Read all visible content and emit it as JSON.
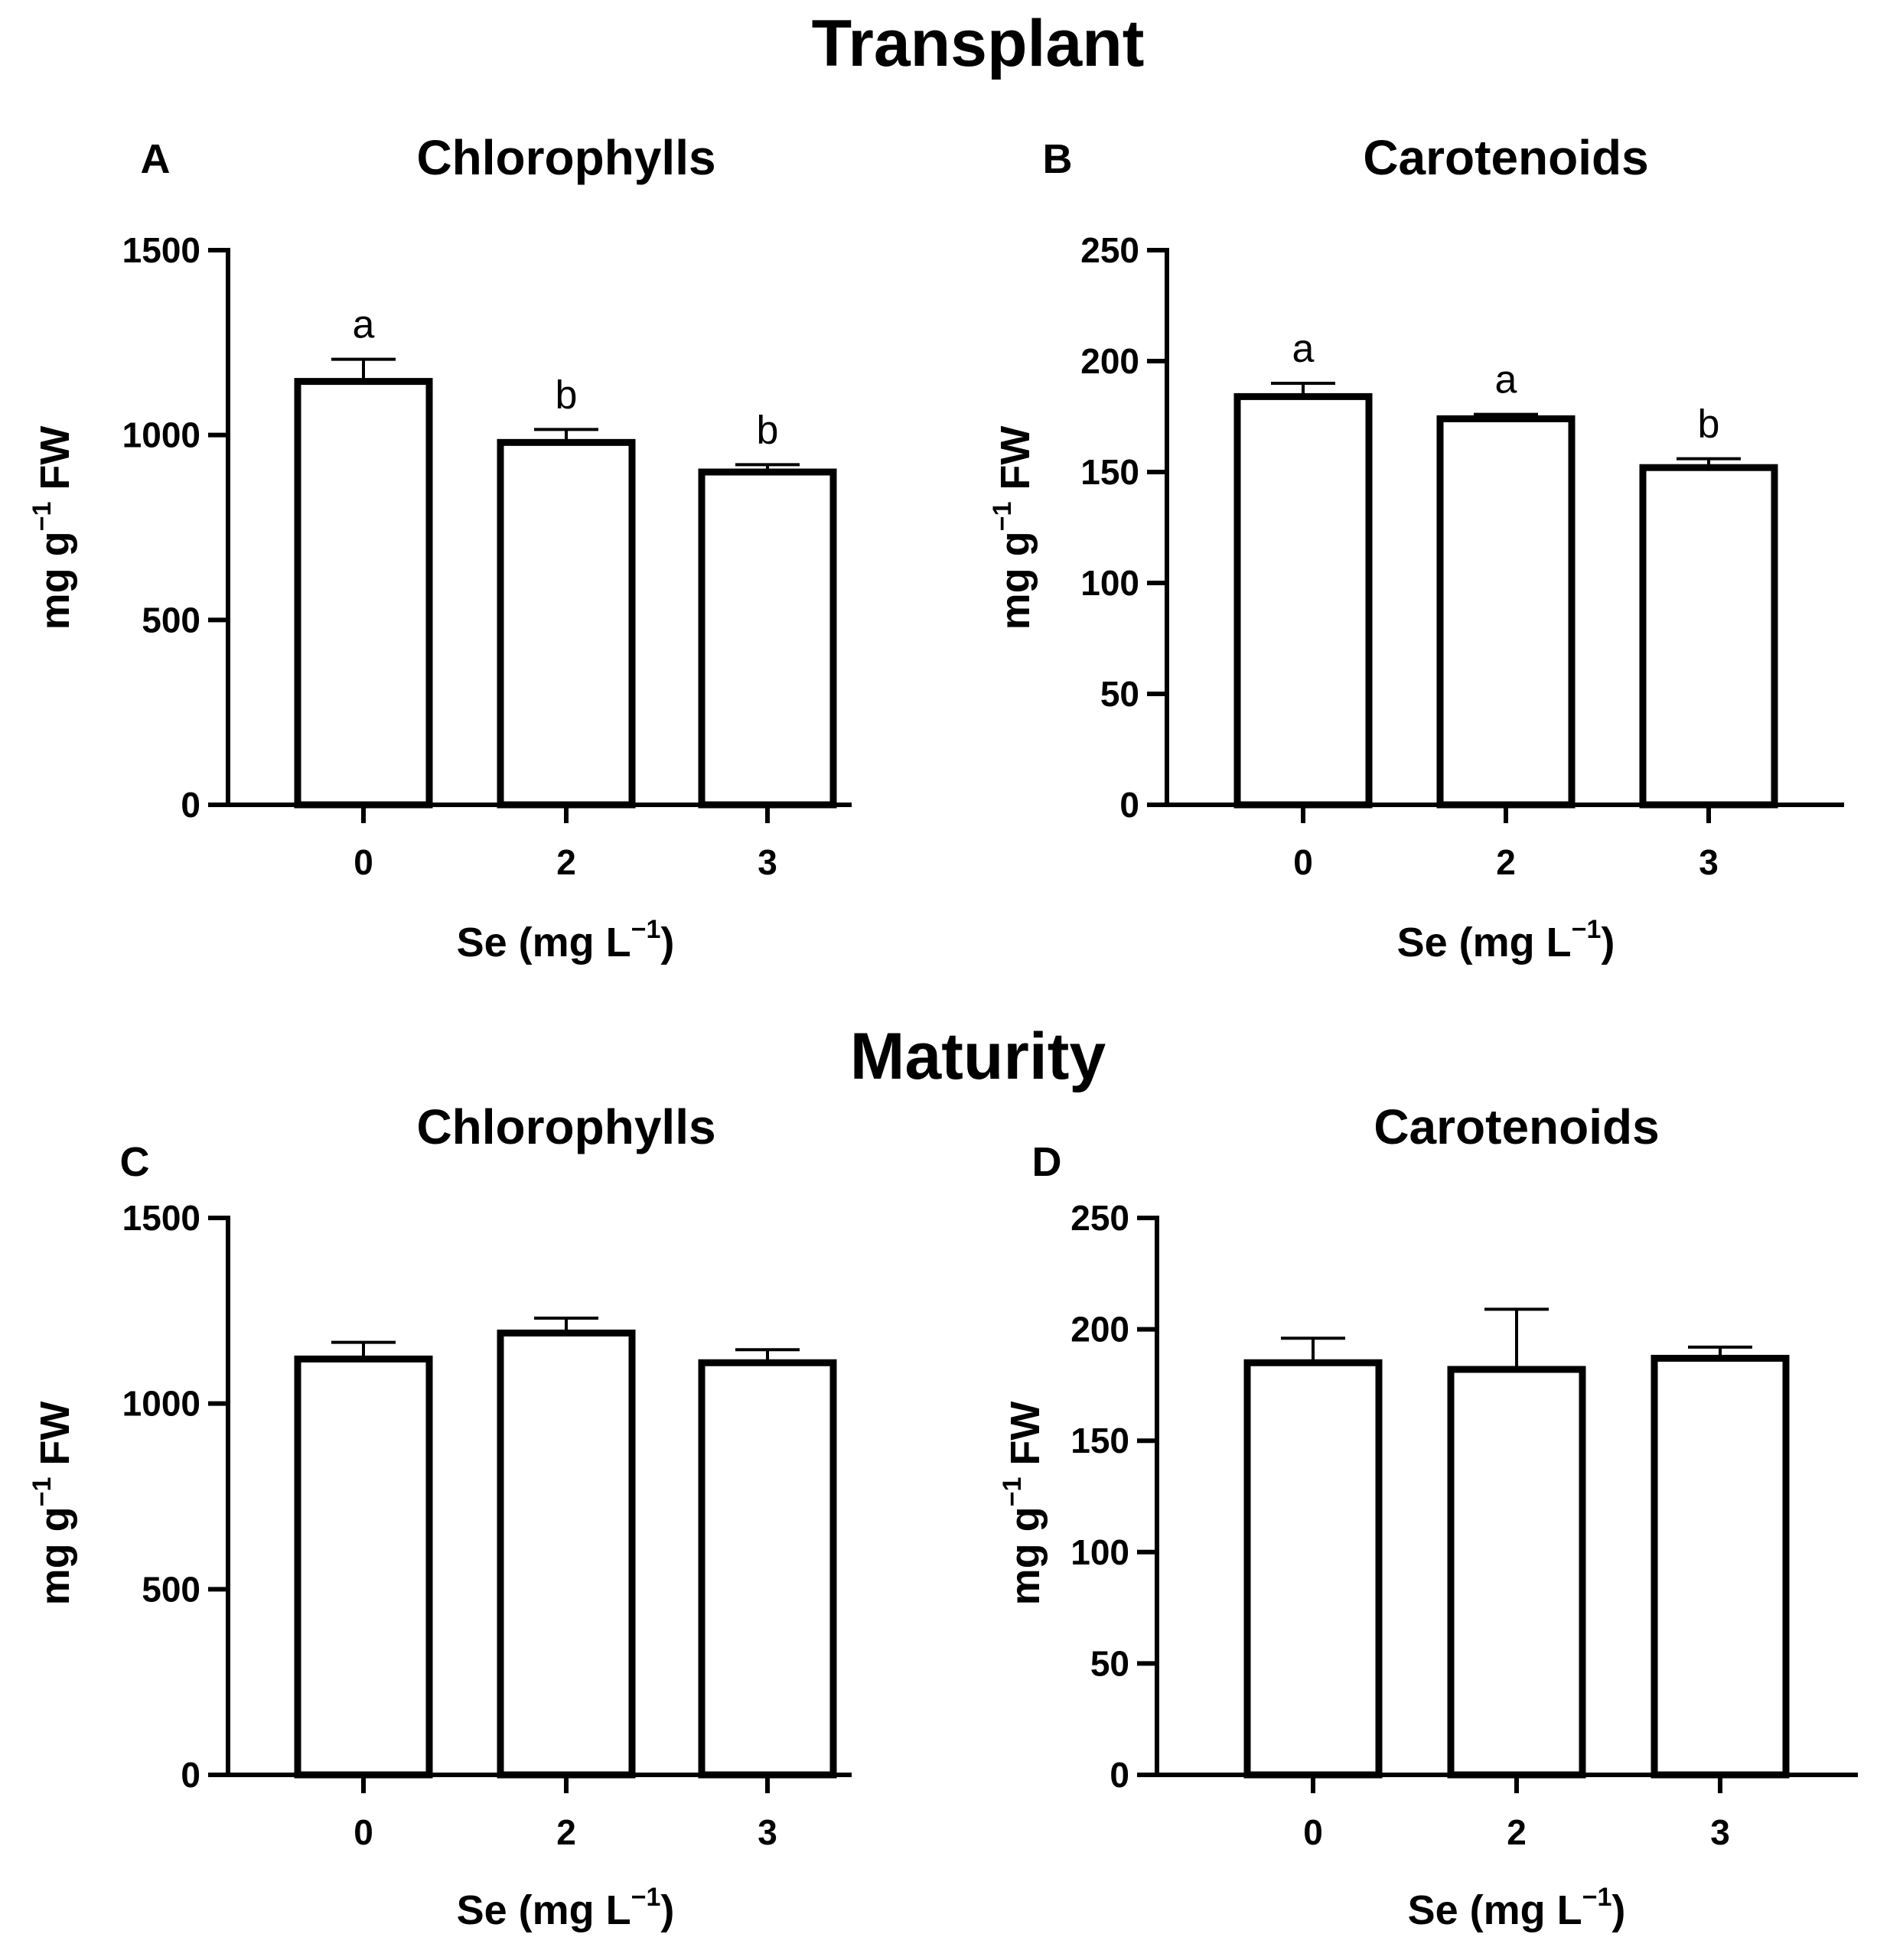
{
  "figure": {
    "sections": [
      {
        "title": "Transplant"
      },
      {
        "title": "Maturity"
      }
    ]
  },
  "chart_data": [
    {
      "panel": "A",
      "section": "Transplant",
      "type": "bar",
      "title": "Chlorophylls",
      "xlabel": "Se (mg L",
      "xlabel_sup": "−1",
      "xlabel_end": ")",
      "ylabel": "mg g",
      "ylabel_sup": "−1",
      "ylabel_end": " FW",
      "categories": [
        "0",
        "2",
        "3"
      ],
      "values": [
        1145,
        980,
        900
      ],
      "errors": [
        60,
        35,
        20
      ],
      "significance": [
        "a",
        "b",
        "b"
      ],
      "ylim": [
        0,
        1500
      ],
      "yticks": [
        0,
        500,
        1000,
        1500
      ]
    },
    {
      "panel": "B",
      "section": "Transplant",
      "type": "bar",
      "title": "Carotenoids",
      "xlabel": "Se (mg L",
      "xlabel_sup": "−1",
      "xlabel_end": ")",
      "ylabel": "mg g",
      "ylabel_sup": "−1",
      "ylabel_end": " FW",
      "categories": [
        "0",
        "2",
        "3"
      ],
      "values": [
        184,
        174,
        152
      ],
      "errors": [
        6,
        2,
        4
      ],
      "significance": [
        "a",
        "a",
        "b"
      ],
      "ylim": [
        0,
        250
      ],
      "yticks": [
        0,
        50,
        100,
        150,
        200,
        250
      ]
    },
    {
      "panel": "C",
      "section": "Maturity",
      "type": "bar",
      "title": "Chlorophylls",
      "xlabel": "Se (mg L",
      "xlabel_sup": "−1",
      "xlabel_end": ")",
      "ylabel": "mg g",
      "ylabel_sup": "−1",
      "ylabel_end": " FW",
      "categories": [
        "0",
        "2",
        "3"
      ],
      "values": [
        1120,
        1190,
        1110
      ],
      "errors": [
        45,
        40,
        35
      ],
      "significance": [
        "",
        "",
        ""
      ],
      "ylim": [
        0,
        1500
      ],
      "yticks": [
        0,
        500,
        1000,
        1500
      ]
    },
    {
      "panel": "D",
      "section": "Maturity",
      "type": "bar",
      "title": "Carotenoids",
      "xlabel": "Se (mg L",
      "xlabel_sup": "−1",
      "xlabel_end": ")",
      "ylabel": "mg g",
      "ylabel_sup": "−1",
      "ylabel_end": " FW",
      "categories": [
        "0",
        "2",
        "3"
      ],
      "values": [
        185,
        182,
        187
      ],
      "errors": [
        11,
        27,
        5
      ],
      "significance": [
        "",
        "",
        ""
      ],
      "ylim": [
        0,
        250
      ],
      "yticks": [
        0,
        50,
        100,
        150,
        200,
        250
      ]
    }
  ]
}
